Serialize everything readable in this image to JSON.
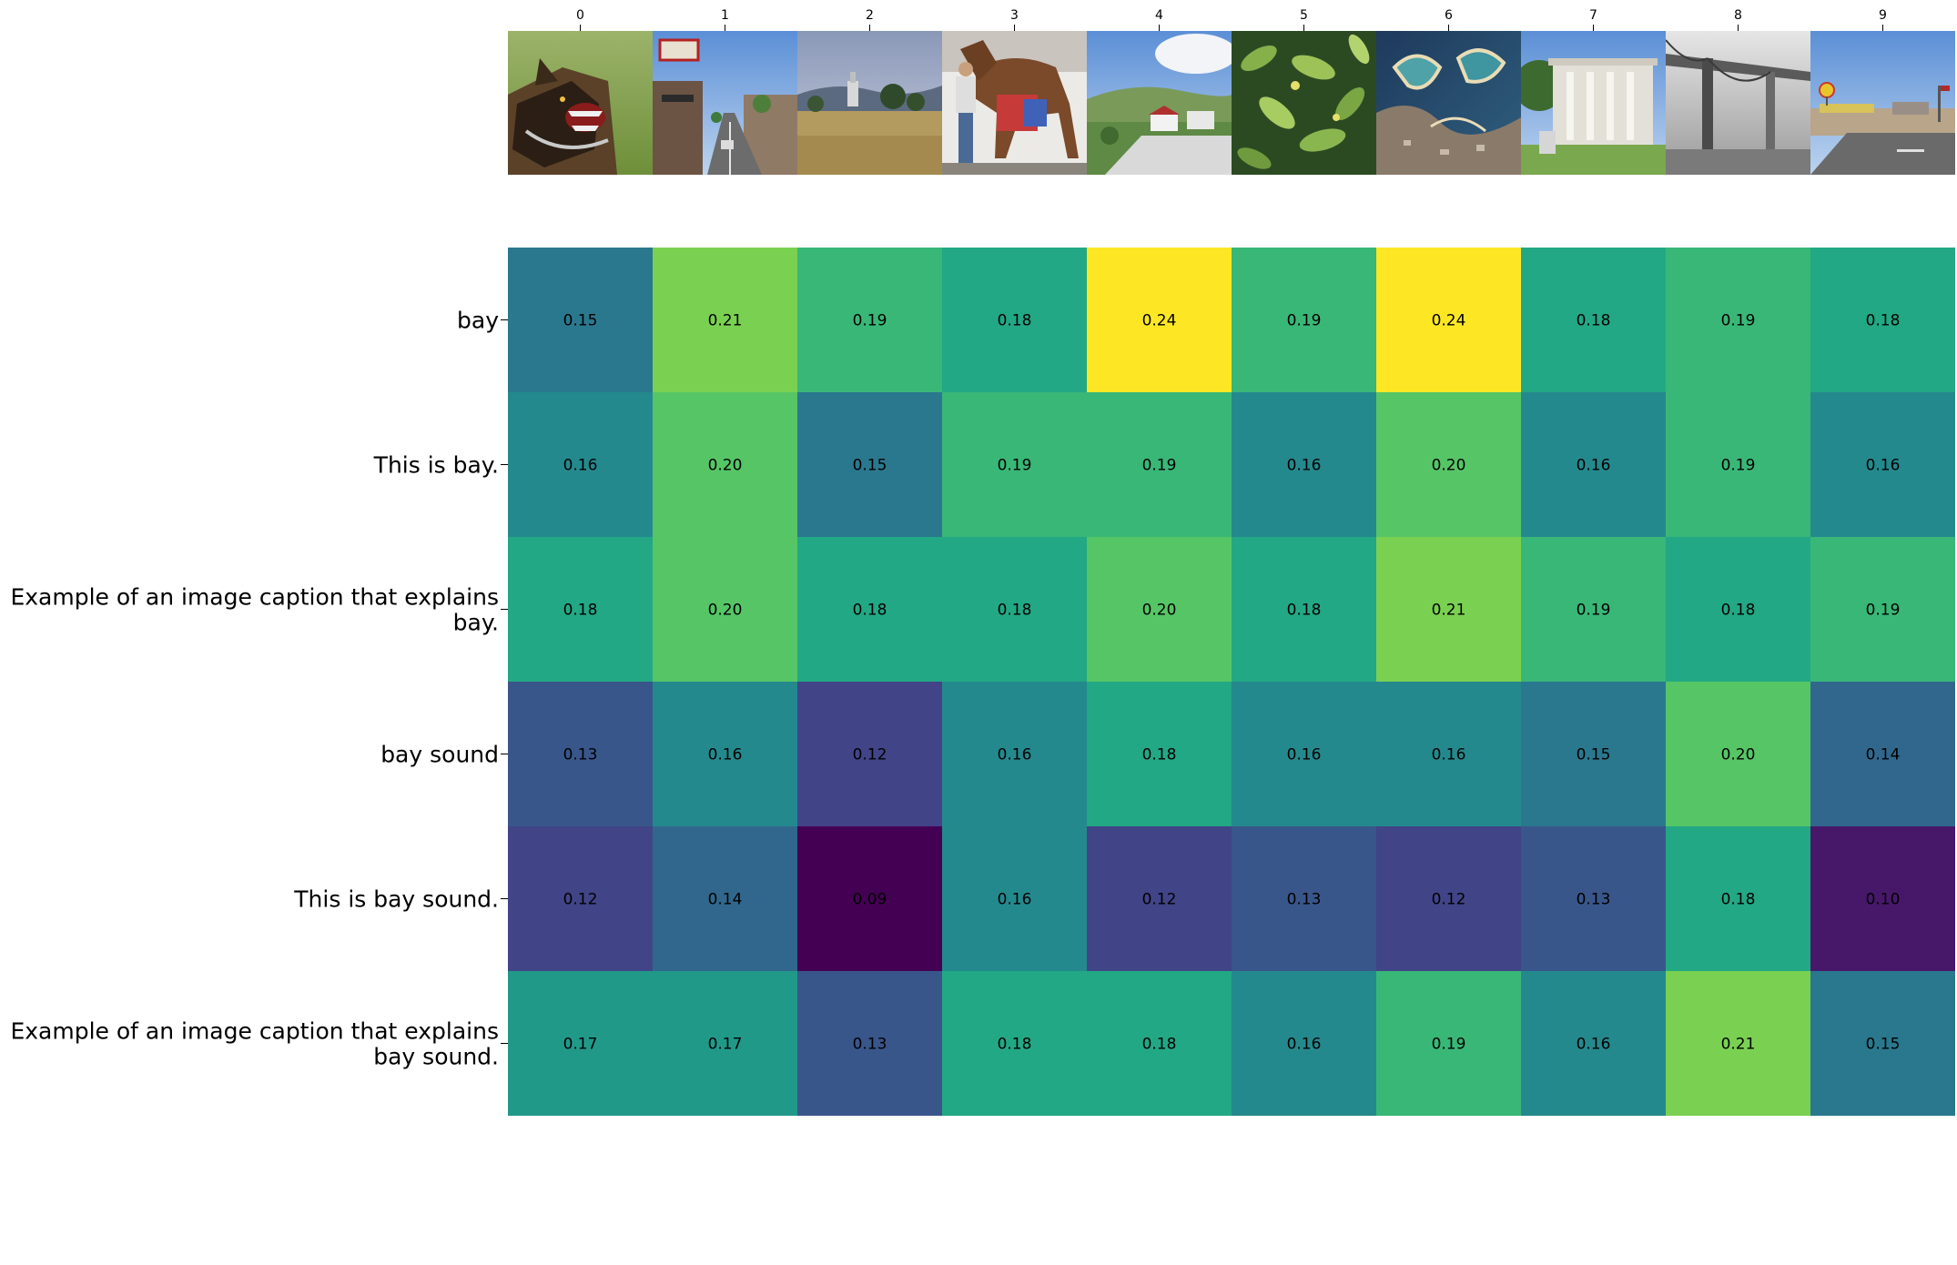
{
  "chart_data": {
    "type": "heatmap",
    "colormap": "viridis",
    "color_range": [
      0.09,
      0.24
    ],
    "columns": [
      "0",
      "1",
      "2",
      "3",
      "4",
      "5",
      "6",
      "7",
      "8",
      "9"
    ],
    "column_images": [
      "snarling-dog-icon",
      "street-with-shop-signs-icon",
      "grassland-with-trees-icon",
      "person-with-horse-icon",
      "hillside-village-icon",
      "green-leaves-icon",
      "aerial-coastline-bay-icon",
      "columned-building-icon",
      "bridge-in-fog-icon",
      "roadside-gas-station-icon"
    ],
    "rows": [
      {
        "label": "bay",
        "label_lines": [
          "bay"
        ],
        "values": [
          "0.15",
          "0.21",
          "0.19",
          "0.18",
          "0.24",
          "0.19",
          "0.24",
          "0.18",
          "0.19",
          "0.18"
        ]
      },
      {
        "label": "This is bay.",
        "label_lines": [
          "This is bay."
        ],
        "values": [
          "0.16",
          "0.20",
          "0.15",
          "0.19",
          "0.19",
          "0.16",
          "0.20",
          "0.16",
          "0.19",
          "0.16"
        ]
      },
      {
        "label": "Example of an image caption that explains bay.",
        "label_lines": [
          "Example of an image caption that explains",
          "bay."
        ],
        "values": [
          "0.18",
          "0.20",
          "0.18",
          "0.18",
          "0.20",
          "0.18",
          "0.21",
          "0.19",
          "0.18",
          "0.19"
        ]
      },
      {
        "label": "bay sound",
        "label_lines": [
          "bay sound"
        ],
        "values": [
          "0.13",
          "0.16",
          "0.12",
          "0.16",
          "0.18",
          "0.16",
          "0.16",
          "0.15",
          "0.20",
          "0.14"
        ]
      },
      {
        "label": "This is bay sound.",
        "label_lines": [
          "This is bay sound."
        ],
        "values": [
          "0.12",
          "0.14",
          "0.09",
          "0.16",
          "0.12",
          "0.13",
          "0.12",
          "0.13",
          "0.18",
          "0.10"
        ]
      },
      {
        "label": "Example of an image caption that explains bay sound.",
        "label_lines": [
          "Example of an image caption that explains",
          "bay sound."
        ],
        "values": [
          "0.17",
          "0.17",
          "0.13",
          "0.18",
          "0.18",
          "0.16",
          "0.19",
          "0.16",
          "0.21",
          "0.15"
        ]
      }
    ]
  }
}
